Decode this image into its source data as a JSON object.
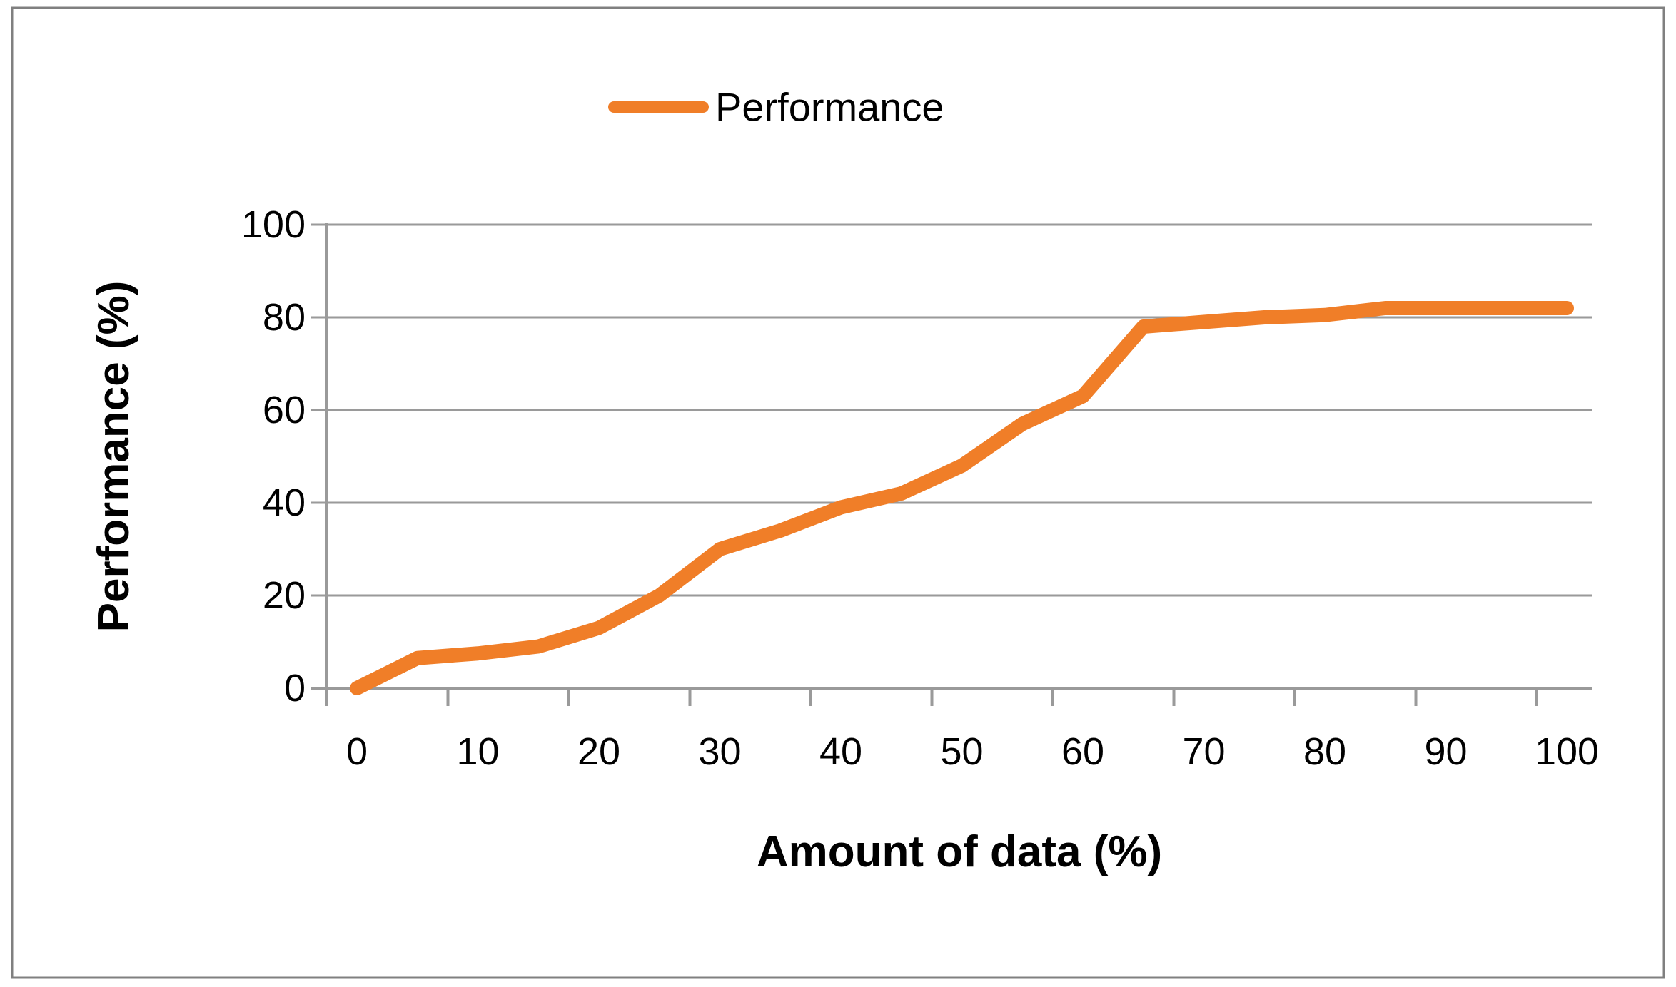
{
  "legend": {
    "label": "Performance"
  },
  "axes": {
    "x_title": "Amount of data (%)",
    "y_title": "Performance (%)"
  },
  "colors": {
    "series": "#F07E28",
    "gridline": "#9A9A9A",
    "axis": "#9A9A9A",
    "border": "#808080",
    "text": "#000000"
  },
  "chart_data": {
    "type": "line",
    "title": "",
    "xlabel": "Amount of data (%)",
    "ylabel": "Performance (%)",
    "series": [
      {
        "name": "Performance",
        "x": [
          0,
          5,
          10,
          15,
          20,
          25,
          30,
          35,
          40,
          45,
          50,
          55,
          60,
          65,
          70,
          75,
          80,
          85,
          90,
          95,
          100
        ],
        "y": [
          0,
          6.5,
          7.5,
          9,
          13,
          20,
          30,
          34,
          39,
          42,
          48,
          57,
          63,
          78,
          79,
          80,
          80.5,
          82,
          82,
          82,
          82
        ]
      }
    ],
    "x_ticks": [
      0,
      10,
      20,
      30,
      40,
      50,
      60,
      70,
      80,
      90,
      100
    ],
    "y_ticks": [
      0,
      20,
      40,
      60,
      80,
      100
    ],
    "xlim": [
      0,
      100
    ],
    "ylim": [
      0,
      100
    ],
    "grid": "horizontal",
    "legend_position": "top-center",
    "line_width": 20,
    "markers": false
  }
}
